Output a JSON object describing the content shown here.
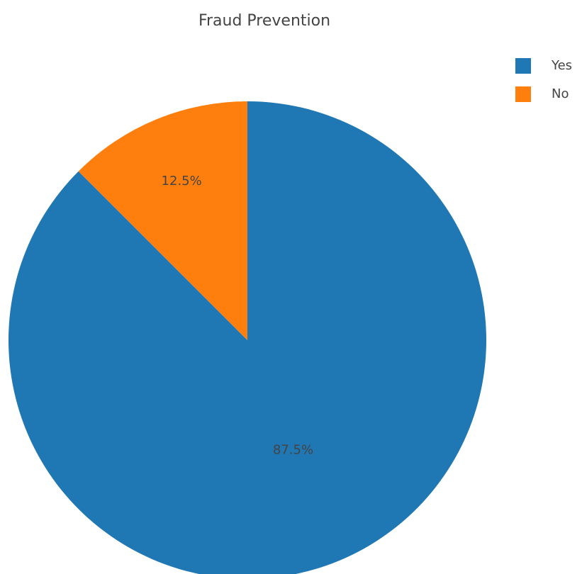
{
  "chart_data": {
    "type": "pie",
    "title": "Fraud Prevention",
    "categories": [
      "Yes",
      "No"
    ],
    "values": [
      87.5,
      12.5
    ],
    "value_labels": [
      "87.5%",
      "12.5%"
    ],
    "colors": [
      "#1f77b4",
      "#ff7f0e"
    ],
    "legend": "top-right"
  }
}
